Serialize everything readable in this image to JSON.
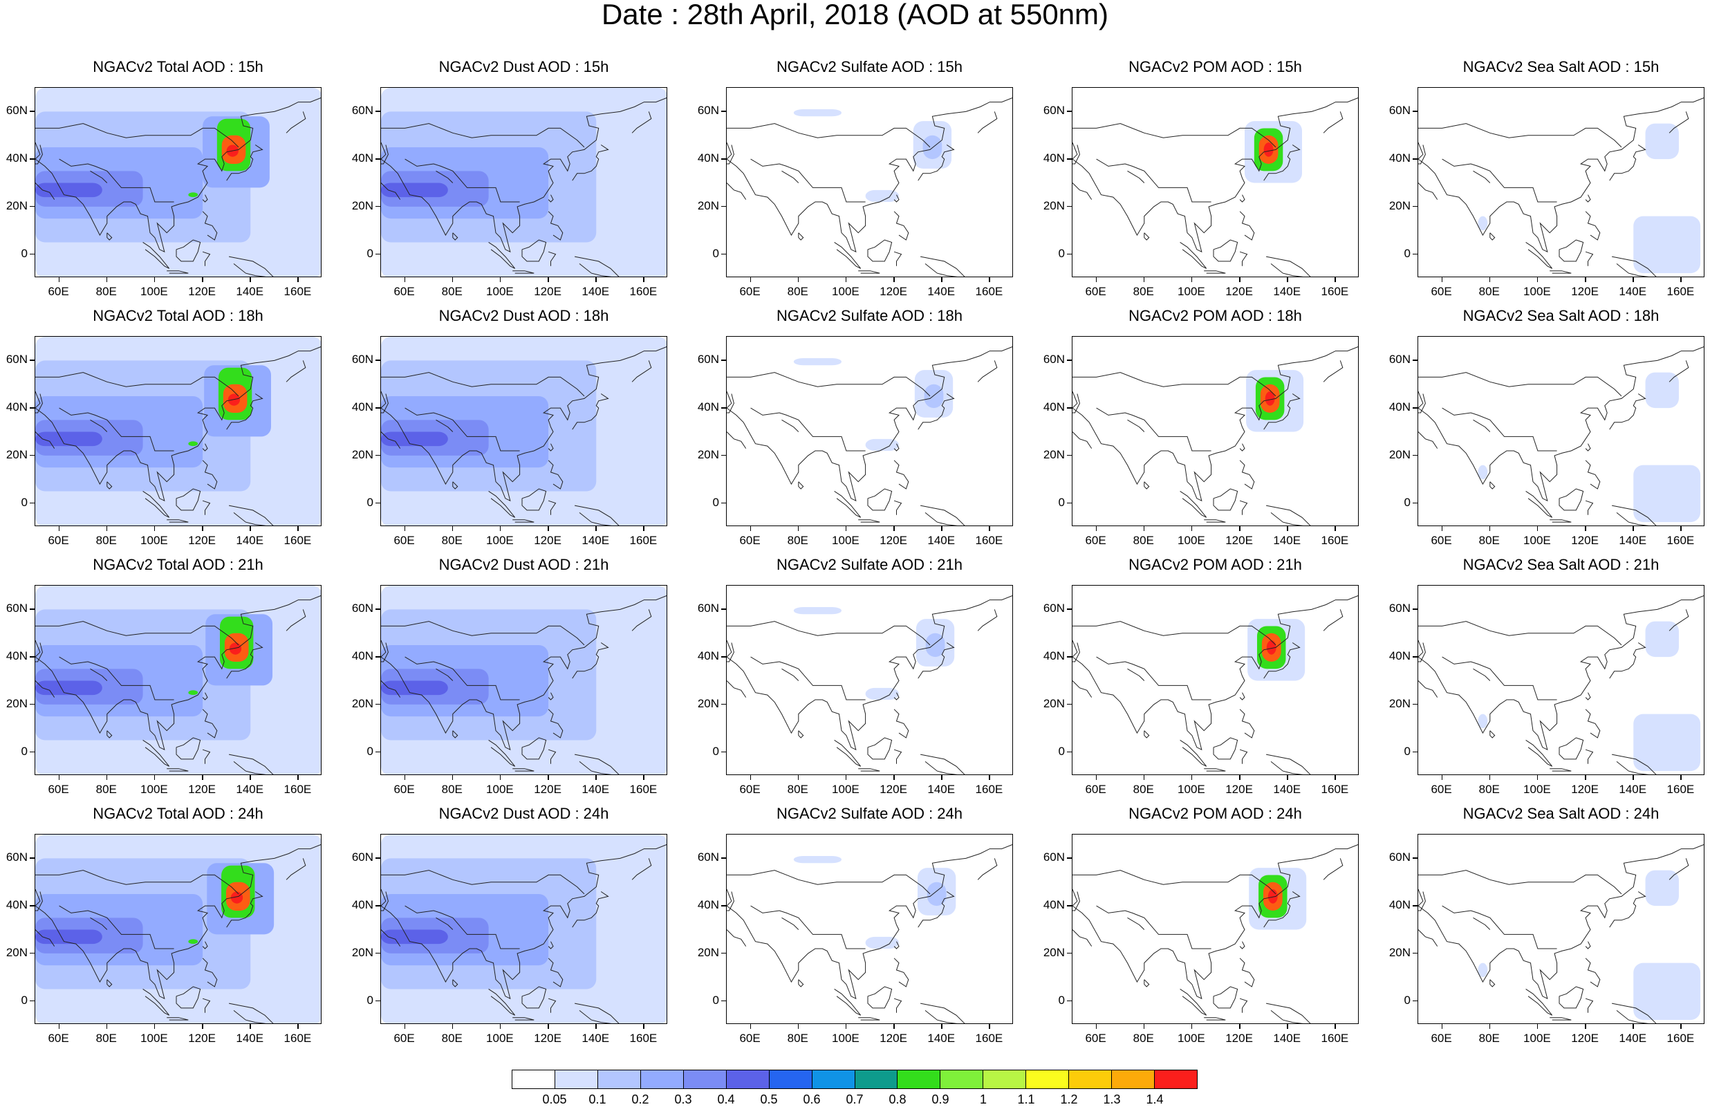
{
  "title": "Date : 28th April, 2018 (AOD at 550nm)",
  "panels": [
    [
      "NGACv2 Total AOD : 15h",
      "NGACv2 Dust AOD : 15h",
      "NGACv2 Sulfate AOD : 15h",
      "NGACv2 POM AOD : 15h",
      "NGACv2 Sea Salt AOD : 15h"
    ],
    [
      "NGACv2 Total AOD : 18h",
      "NGACv2 Dust AOD : 18h",
      "NGACv2 Sulfate AOD : 18h",
      "NGACv2 POM AOD : 18h",
      "NGACv2 Sea Salt AOD : 18h"
    ],
    [
      "NGACv2 Total AOD : 21h",
      "NGACv2 Dust AOD : 21h",
      "NGACv2 Sulfate AOD : 21h",
      "NGACv2 POM AOD : 21h",
      "NGACv2 Sea Salt AOD : 21h"
    ],
    [
      "NGACv2 Total AOD : 24h",
      "NGACv2 Dust AOD : 24h",
      "NGACv2 Sulfate AOD : 24h",
      "NGACv2 POM AOD : 24h",
      "NGACv2 Sea Salt  AOD : 24h"
    ]
  ],
  "lat_labels": [
    "60N",
    "40N",
    "20N",
    "0"
  ],
  "lon_labels": [
    "60E",
    "80E",
    "100E",
    "120E",
    "140E",
    "160E"
  ],
  "colorbar": {
    "colors": [
      "#ffffff",
      "#d6e1ff",
      "#b3c6ff",
      "#93abff",
      "#7b8cf5",
      "#5c62e8",
      "#2565f0",
      "#1093e6",
      "#0e9b8c",
      "#33dd1c",
      "#7ff03a",
      "#b8f545",
      "#fbfc1e",
      "#fccc0a",
      "#fcaa0a",
      "#fc880a",
      "#fc5d13",
      "#fb1f1c"
    ],
    "labels": [
      "0.05",
      "0.1",
      "0.2",
      "0.3",
      "0.4",
      "0.5",
      "0.6",
      "0.7",
      "0.8",
      "0.9",
      "1",
      "1.1",
      "1.2",
      "1.3",
      "1.4"
    ]
  }
}
